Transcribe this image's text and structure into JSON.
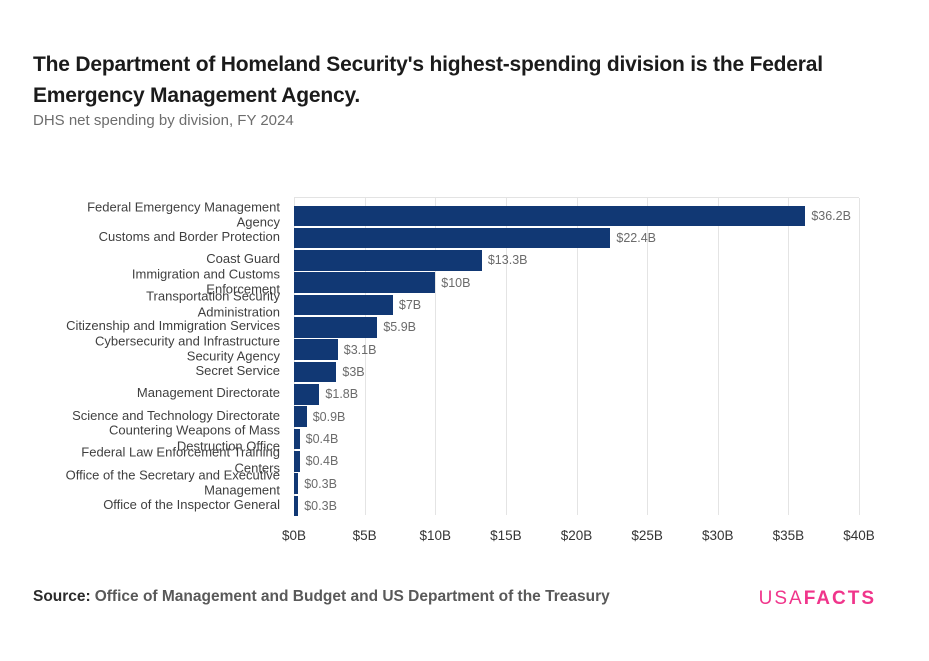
{
  "header": {
    "title": "The Department of Homeland Security's highest-spending division is the Federal Emergency Management Agency.",
    "subtitle": "DHS net spending by division, FY 2024"
  },
  "chart_data": {
    "type": "bar",
    "orientation": "horizontal",
    "title": "DHS net spending by division, FY 2024",
    "unit": "billions of dollars",
    "xlabel": "",
    "ylabel": "",
    "xlim": [
      0,
      40
    ],
    "grid": "vertical",
    "legend": "none",
    "bar_color": "#113874",
    "x_tick_values": [
      0,
      5,
      10,
      15,
      20,
      25,
      30,
      35,
      40
    ],
    "x_tick_labels": [
      "$0B",
      "$5B",
      "$10B",
      "$15B",
      "$20B",
      "$25B",
      "$30B",
      "$35B",
      "$40B"
    ],
    "categories": [
      "Federal Emergency Management Agency",
      "Customs and Border Protection",
      "Coast Guard",
      "Immigration and Customs Enforcement",
      "Transportation Security Administration",
      "Citizenship and Immigration Services",
      "Cybersecurity and Infrastructure Security Agency",
      "Secret Service",
      "Management Directorate",
      "Science and Technology Directorate",
      "Countering Weapons of Mass Destruction Office",
      "Federal Law Enforcement Training Centers",
      "Office of the Secretary and Executive Management",
      "Office of the Inspector General"
    ],
    "category_display_lines": [
      [
        "Federal Emergency Management",
        "Agency"
      ],
      [
        "Customs and Border Protection"
      ],
      [
        "Coast Guard"
      ],
      [
        "Immigration and Customs",
        "Enforcement"
      ],
      [
        "Transportation Security",
        "Administration"
      ],
      [
        "Citizenship and Immigration Services"
      ],
      [
        "Cybersecurity and Infrastructure",
        "Security Agency"
      ],
      [
        "Secret Service"
      ],
      [
        "Management Directorate"
      ],
      [
        "Science and Technology Directorate"
      ],
      [
        "Countering Weapons of Mass",
        "Destruction Office"
      ],
      [
        "Federal Law Enforcement Training",
        "Centers"
      ],
      [
        "Office of the Secretary and Executive",
        "Management"
      ],
      [
        "Office of the Inspector General"
      ]
    ],
    "values": [
      36.2,
      22.4,
      13.3,
      10,
      7,
      5.9,
      3.1,
      3,
      1.8,
      0.9,
      0.4,
      0.4,
      0.3,
      0.3
    ],
    "value_labels": [
      "$36.2B",
      "$22.4B",
      "$13.3B",
      "$10B",
      "$7B",
      "$5.9B",
      "$3.1B",
      "$3B",
      "$1.8B",
      "$0.9B",
      "$0.4B",
      "$0.4B",
      "$0.3B",
      "$0.3B"
    ]
  },
  "footer": {
    "source_label": "Source:",
    "source_text": "Office of Management and Budget and US Department of the Treasury",
    "logo": {
      "part1": "USA",
      "part2": "FACTS",
      "color": "#f0358b"
    }
  }
}
